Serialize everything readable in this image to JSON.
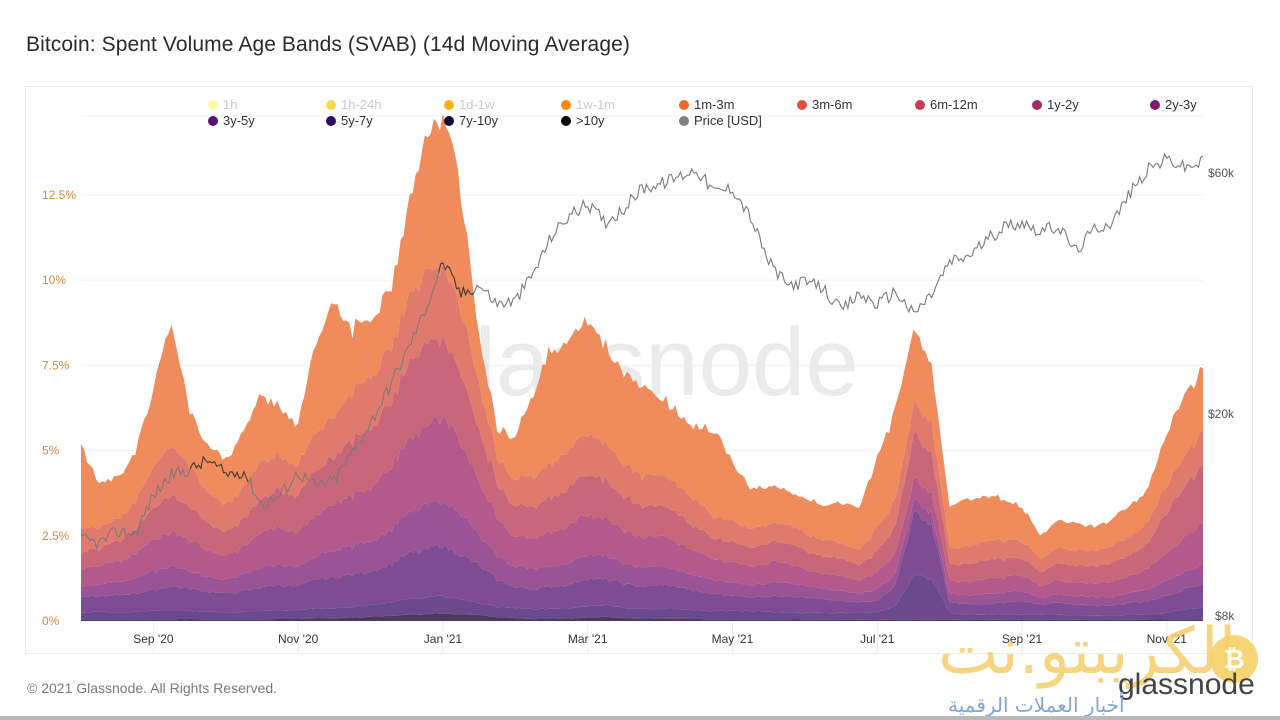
{
  "page": {
    "title": "Bitcoin: Spent Volume Age Bands (SVAB) (14d Moving Average)",
    "footer": "© 2021 Glassnode. All Rights Reserved.",
    "watermark_center": "glassnode",
    "watermark_arabic": "الكريبتو.نت",
    "watermark_brand": "glassnode",
    "watermark_subtitle": "أخبار العملات الرقمية",
    "watermark_btc_glyph": "₿"
  },
  "chart_data": {
    "type": "area",
    "stacked": true,
    "title": "Bitcoin: Spent Volume Age Bands (SVAB) (14d Moving Average)",
    "xlabel": "",
    "ylabel": "",
    "x_start": "2020-08-01",
    "x_end": "2021-11-15",
    "x_tick_labels": [
      "Sep '20",
      "Nov '20",
      "Jan '21",
      "Mar '21",
      "May '21",
      "Jul '21",
      "Sep '21",
      "Nov '21"
    ],
    "x_tick_positions_months": [
      1,
      3,
      5,
      7,
      9,
      11,
      13,
      15
    ],
    "y_left": {
      "ticks": [
        "0%",
        "2.5%",
        "5%",
        "7.5%",
        "10%",
        "12.5%"
      ],
      "tick_values": [
        0,
        2.5,
        5,
        7.5,
        10,
        12.5
      ],
      "range": [
        0,
        13.9
      ],
      "unit": "%"
    },
    "y_right": {
      "scale": "log",
      "ticks": [
        "$8k",
        "$20k",
        "$60k"
      ],
      "tick_values": [
        8000,
        20000,
        60000
      ],
      "range": [
        7600,
        70000
      ],
      "unit": "USD"
    },
    "grid": true,
    "legend_position": "top",
    "legend": [
      {
        "name": "1h",
        "color": "#fcfc9f",
        "active": false
      },
      {
        "name": "1h-24h",
        "color": "#f5dc4e",
        "active": false
      },
      {
        "name": "1d-1w",
        "color": "#fbb21b",
        "active": false
      },
      {
        "name": "1w-1m",
        "color": "#f98a0b",
        "active": false
      },
      {
        "name": "1m-3m",
        "color": "#ee6a2a",
        "active": true
      },
      {
        "name": "3m-6m",
        "color": "#e05140",
        "active": true
      },
      {
        "name": "6m-12m",
        "color": "#c93d55",
        "active": true
      },
      {
        "name": "1y-2y",
        "color": "#a62a68",
        "active": true
      },
      {
        "name": "2y-3y",
        "color": "#7f1c72",
        "active": true
      },
      {
        "name": "3y-5y",
        "color": "#5c1170",
        "active": true
      },
      {
        "name": "5y-7y",
        "color": "#320a5e",
        "active": true
      },
      {
        "name": "7y-10y",
        "color": "#140a33",
        "active": true
      },
      {
        "name": ">10y",
        "color": "#000004",
        "active": true
      },
      {
        "name": "Price [USD]",
        "color": "#808080",
        "active": true
      }
    ],
    "t_months": [
      0,
      0.25,
      0.5,
      0.75,
      1,
      1.25,
      1.5,
      1.75,
      2,
      2.25,
      2.5,
      2.75,
      3,
      3.25,
      3.5,
      3.75,
      4,
      4.25,
      4.5,
      4.75,
      5,
      5.25,
      5.5,
      5.75,
      6,
      6.25,
      6.5,
      6.75,
      7,
      7.25,
      7.5,
      7.75,
      8,
      8.25,
      8.5,
      8.75,
      9,
      9.25,
      9.5,
      9.75,
      10,
      10.25,
      10.5,
      10.75,
      11,
      11.25,
      11.5,
      11.75,
      12,
      12.25,
      12.5,
      12.75,
      13,
      13.25,
      13.5,
      13.75,
      14,
      14.25,
      14.5,
      14.75,
      15,
      15.25,
      15.5
    ],
    "series": [
      {
        "name": "7y-10y+",
        "fill": "#4b3a5e",
        "values": [
          0.05,
          0.05,
          0.05,
          0.05,
          0.05,
          0.05,
          0.06,
          0.05,
          0.05,
          0.05,
          0.05,
          0.06,
          0.06,
          0.07,
          0.08,
          0.1,
          0.12,
          0.15,
          0.18,
          0.2,
          0.22,
          0.2,
          0.18,
          0.12,
          0.08,
          0.06,
          0.06,
          0.06,
          0.1,
          0.12,
          0.08,
          0.06,
          0.06,
          0.07,
          0.06,
          0.05,
          0.05,
          0.05,
          0.05,
          0.05,
          0.04,
          0.04,
          0.04,
          0.04,
          0.04,
          0.04,
          0.04,
          0.04,
          0.04,
          0.04,
          0.04,
          0.04,
          0.04,
          0.04,
          0.04,
          0.04,
          0.04,
          0.04,
          0.04,
          0.04,
          0.05,
          0.05,
          0.05
        ]
      },
      {
        "name": "5y-7y",
        "fill": "#6a4a8c",
        "values": [
          0.2,
          0.22,
          0.2,
          0.22,
          0.25,
          0.28,
          0.25,
          0.22,
          0.2,
          0.22,
          0.25,
          0.25,
          0.25,
          0.3,
          0.3,
          0.32,
          0.35,
          0.4,
          0.45,
          0.5,
          0.5,
          0.45,
          0.35,
          0.3,
          0.3,
          0.28,
          0.3,
          0.32,
          0.35,
          0.35,
          0.3,
          0.3,
          0.3,
          0.28,
          0.25,
          0.25,
          0.25,
          0.25,
          0.22,
          0.2,
          0.2,
          0.2,
          0.2,
          0.2,
          0.22,
          0.4,
          1.3,
          1.2,
          0.2,
          0.15,
          0.15,
          0.15,
          0.15,
          0.15,
          0.15,
          0.12,
          0.12,
          0.12,
          0.15,
          0.15,
          0.2,
          0.3,
          0.35
        ]
      },
      {
        "name": "3y-5y",
        "fill": "#7e4c93",
        "values": [
          0.45,
          0.45,
          0.5,
          0.55,
          0.6,
          0.7,
          0.65,
          0.6,
          0.55,
          0.6,
          0.7,
          0.75,
          0.7,
          0.85,
          0.9,
          0.95,
          1.0,
          1.1,
          1.3,
          1.4,
          1.5,
          1.3,
          1.1,
          0.8,
          0.6,
          0.6,
          0.65,
          0.7,
          0.8,
          0.75,
          0.7,
          0.65,
          0.7,
          0.65,
          0.55,
          0.5,
          0.45,
          0.4,
          0.45,
          0.5,
          0.45,
          0.4,
          0.35,
          0.3,
          0.35,
          0.6,
          1.8,
          1.6,
          0.3,
          0.3,
          0.3,
          0.35,
          0.4,
          0.3,
          0.35,
          0.3,
          0.3,
          0.3,
          0.35,
          0.4,
          0.5,
          0.6,
          0.7
        ]
      },
      {
        "name": "2y-3y",
        "fill": "#9a5496",
        "values": [
          0.3,
          0.35,
          0.4,
          0.45,
          0.55,
          0.6,
          0.5,
          0.45,
          0.4,
          0.5,
          0.6,
          0.6,
          0.55,
          0.7,
          0.8,
          0.85,
          0.9,
          1.0,
          1.2,
          1.3,
          1.3,
          1.2,
          0.9,
          0.7,
          0.6,
          0.6,
          0.6,
          0.65,
          0.7,
          0.7,
          0.6,
          0.55,
          0.55,
          0.5,
          0.45,
          0.4,
          0.4,
          0.35,
          0.4,
          0.4,
          0.35,
          0.3,
          0.3,
          0.25,
          0.35,
          0.35,
          0.35,
          0.35,
          0.25,
          0.25,
          0.3,
          0.3,
          0.3,
          0.2,
          0.25,
          0.25,
          0.25,
          0.25,
          0.3,
          0.35,
          0.45,
          0.5,
          0.6
        ]
      },
      {
        "name": "1y-2y",
        "fill": "#b4598b",
        "values": [
          0.5,
          0.55,
          0.6,
          0.7,
          0.9,
          1.0,
          0.9,
          0.8,
          0.7,
          0.8,
          1.0,
          1.1,
          1.0,
          1.2,
          1.4,
          1.5,
          1.6,
          1.8,
          2.1,
          2.3,
          2.4,
          2.1,
          1.6,
          1.1,
          0.9,
          0.9,
          1.0,
          1.1,
          1.2,
          1.1,
          1.0,
          0.9,
          0.9,
          0.8,
          0.7,
          0.6,
          0.6,
          0.55,
          0.6,
          0.6,
          0.5,
          0.45,
          0.45,
          0.4,
          0.5,
          0.6,
          0.6,
          0.6,
          0.4,
          0.4,
          0.45,
          0.45,
          0.45,
          0.35,
          0.4,
          0.4,
          0.4,
          0.45,
          0.5,
          0.6,
          0.8,
          1.0,
          1.2
        ]
      },
      {
        "name": "6m-12m",
        "fill": "#c9677a",
        "values": [
          0.5,
          0.5,
          0.6,
          0.7,
          0.9,
          1.1,
          1.0,
          0.8,
          0.7,
          0.8,
          1.0,
          1.1,
          1.1,
          1.3,
          1.4,
          1.6,
          1.7,
          1.9,
          2.2,
          2.4,
          2.3,
          2.0,
          1.5,
          1.0,
          0.9,
          0.9,
          1.0,
          1.1,
          1.2,
          1.1,
          1.0,
          0.9,
          0.9,
          0.85,
          0.7,
          0.6,
          0.6,
          0.55,
          0.6,
          0.6,
          0.55,
          0.5,
          0.5,
          0.45,
          0.6,
          0.8,
          1.3,
          1.2,
          0.5,
          0.5,
          0.55,
          0.55,
          0.5,
          0.4,
          0.5,
          0.5,
          0.5,
          0.55,
          0.6,
          0.8,
          1.2,
          1.5,
          1.7
        ]
      },
      {
        "name": "3m-6m",
        "fill": "#e07a6c",
        "values": [
          0.7,
          0.6,
          0.65,
          0.8,
          1.2,
          1.5,
          1.2,
          0.9,
          0.8,
          0.9,
          1.1,
          1.0,
          0.9,
          1.1,
          1.2,
          1.4,
          1.5,
          1.6,
          1.9,
          2.1,
          2.2,
          1.9,
          1.3,
          0.8,
          0.8,
          0.9,
          1.0,
          1.1,
          1.2,
          1.1,
          1.0,
          0.9,
          0.9,
          0.85,
          0.75,
          0.65,
          0.6,
          0.55,
          0.55,
          0.55,
          0.5,
          0.5,
          0.45,
          0.45,
          0.7,
          0.8,
          0.9,
          0.9,
          0.5,
          0.5,
          0.55,
          0.55,
          0.5,
          0.4,
          0.45,
          0.45,
          0.45,
          0.5,
          0.55,
          0.6,
          0.8,
          0.9,
          1.0
        ]
      },
      {
        "name": "1m-3m",
        "fill": "#f08c5c",
        "values": [
          2.4,
          1.3,
          1.2,
          1.4,
          2.3,
          3.5,
          1.6,
          1.4,
          1.3,
          1.7,
          2.0,
          1.4,
          1.2,
          2.7,
          3.3,
          1.8,
          1.7,
          1.7,
          2.6,
          3.9,
          4.6,
          3.5,
          1.4,
          0.8,
          1.3,
          2.4,
          3.4,
          3.2,
          3.4,
          2.9,
          2.6,
          2.6,
          2.3,
          2.1,
          2.2,
          2.5,
          1.7,
          1.2,
          1.1,
          1.0,
          1.0,
          1.0,
          1.2,
          1.3,
          2.0,
          2.6,
          2.2,
          1.6,
          1.2,
          1.4,
          1.3,
          1.2,
          1.0,
          0.7,
          0.8,
          0.8,
          0.7,
          0.8,
          0.9,
          1.0,
          1.5,
          1.8,
          1.9
        ]
      }
    ],
    "price_usd": [
      11300,
      11100,
      11700,
      11600,
      13800,
      15200,
      15500,
      16200,
      15200,
      15400,
      13200,
      13800,
      15300,
      14400,
      14800,
      16800,
      19200,
      22500,
      26600,
      32000,
      40000,
      34500,
      36000,
      33000,
      33500,
      38000,
      45000,
      49500,
      52000,
      48000,
      51000,
      56000,
      57000,
      59000,
      61000,
      55000,
      56000,
      49000,
      40000,
      36000,
      36500,
      35500,
      32000,
      34500,
      33000,
      35000,
      31500,
      34500,
      40000,
      41000,
      44000,
      47000,
      48000,
      46000,
      47000,
      42000,
      46500,
      48000,
      55000,
      61000,
      64000,
      61500,
      63000
    ]
  }
}
